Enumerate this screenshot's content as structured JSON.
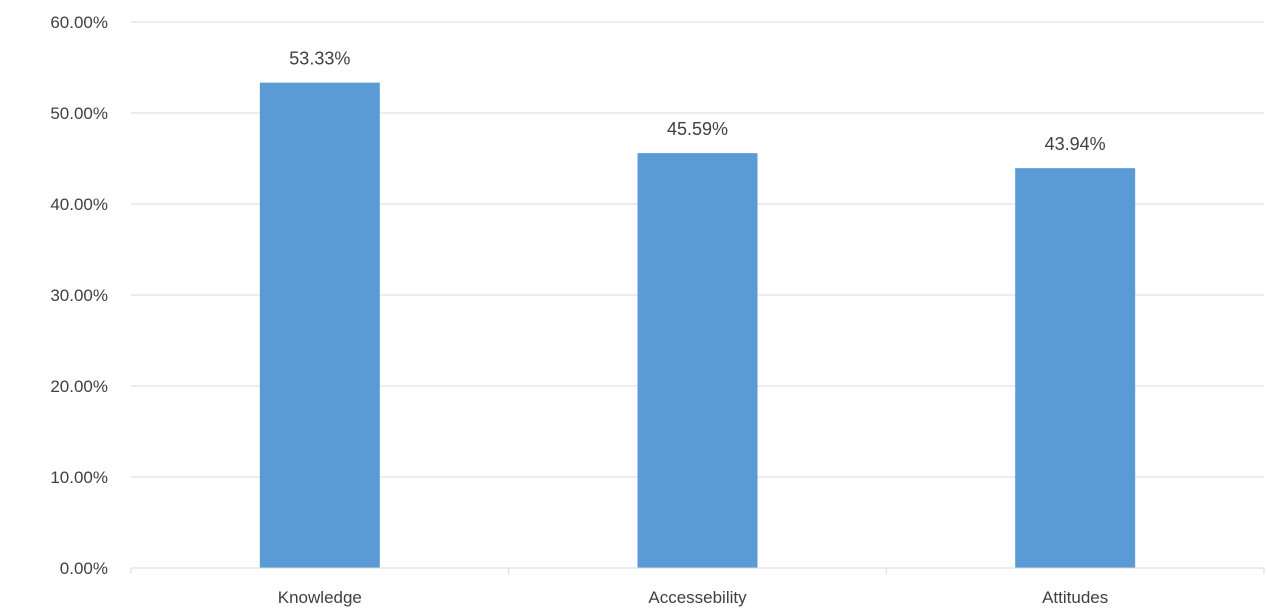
{
  "chart_data": {
    "type": "bar",
    "title": "",
    "xlabel": "",
    "ylabel": "",
    "categories": [
      "Knowledge",
      "Accessebility",
      "Attitudes"
    ],
    "values": [
      53.33,
      45.59,
      43.94
    ],
    "data_labels": [
      "53.33%",
      "45.59%",
      "43.94%"
    ],
    "ylim": [
      0,
      60
    ],
    "yticks": [
      0,
      10,
      20,
      30,
      40,
      50,
      60
    ],
    "ytick_labels": [
      "0.00%",
      "10.00%",
      "20.00%",
      "30.00%",
      "40.00%",
      "50.00%",
      "60.00%"
    ],
    "grid": true,
    "legend": "none",
    "colors": {
      "bar": "#5b9bd5",
      "grid": "#d9d9d9",
      "text": "#404040"
    }
  }
}
